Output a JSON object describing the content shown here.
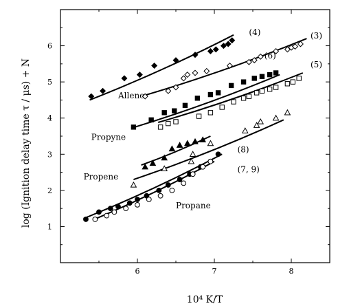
{
  "chart_data": {
    "type": "scatter",
    "xlabel": "10⁴ K/T",
    "ylabel": "log (Ignition delay time  τ / μs) + N",
    "xlim": [
      5,
      8.5
    ],
    "ylim": [
      0,
      7
    ],
    "xticks": [
      "6",
      "7",
      "8"
    ],
    "yticks": [
      "1",
      "2",
      "3",
      "4",
      "5",
      "6"
    ],
    "grid": false,
    "legend": "none",
    "annotations": [
      {
        "text": "(4)",
        "x": 7.45,
        "y": 6.3
      },
      {
        "text": "(3)",
        "x": 8.25,
        "y": 6.2
      },
      {
        "text": "(6)",
        "x": 7.65,
        "y": 5.65
      },
      {
        "text": "(5)",
        "x": 8.25,
        "y": 5.4
      },
      {
        "text": "Allene",
        "x": 5.75,
        "y": 4.55
      },
      {
        "text": "Propyne",
        "x": 5.4,
        "y": 3.4
      },
      {
        "text": "Propene",
        "x": 5.3,
        "y": 2.3
      },
      {
        "text": "(8)",
        "x": 7.3,
        "y": 3.05
      },
      {
        "text": "(7, 9)",
        "x": 7.3,
        "y": 2.5
      },
      {
        "text": "Propane",
        "x": 6.5,
        "y": 1.5
      }
    ],
    "series": [
      {
        "label": "(4)",
        "marker": "diamond-filled",
        "x": [
          5.4,
          5.55,
          5.83,
          6.03,
          6.22,
          6.5,
          6.75,
          6.95,
          7.02,
          7.12,
          7.18,
          7.23
        ],
        "y": [
          4.6,
          4.75,
          5.1,
          5.2,
          5.45,
          5.6,
          5.75,
          5.85,
          5.9,
          6.0,
          6.05,
          6.15
        ],
        "fit": {
          "x": [
            5.38,
            7.25
          ],
          "y": [
            4.5,
            6.3
          ]
        }
      },
      {
        "label": "(3)",
        "marker": "diamond-open",
        "x": [
          6.1,
          6.4,
          6.5,
          6.6,
          6.65,
          6.75,
          6.9,
          7.2,
          7.45,
          7.52,
          7.6,
          7.8,
          7.95,
          8.0,
          8.05,
          8.12
        ],
        "y": [
          4.6,
          4.75,
          4.85,
          5.1,
          5.2,
          5.25,
          5.3,
          5.45,
          5.55,
          5.6,
          5.7,
          5.85,
          5.9,
          5.95,
          5.98,
          6.05
        ],
        "fit": {
          "x": [
            6.08,
            8.2
          ],
          "y": [
            4.62,
            6.2
          ]
        }
      },
      {
        "label": "(6)",
        "marker": "square-filled",
        "x": [
          5.95,
          6.18,
          6.35,
          6.48,
          6.62,
          6.78,
          6.95,
          7.05,
          7.22,
          7.38,
          7.52,
          7.62,
          7.72,
          7.8
        ],
        "y": [
          3.75,
          3.95,
          4.15,
          4.2,
          4.35,
          4.55,
          4.65,
          4.7,
          4.9,
          5.0,
          5.1,
          5.15,
          5.2,
          5.25
        ],
        "fit": {
          "x": [
            5.92,
            7.85
          ],
          "y": [
            3.72,
            5.2
          ]
        }
      },
      {
        "label": "(5)",
        "marker": "square-open",
        "x": [
          6.3,
          6.4,
          6.5,
          6.8,
          6.95,
          7.1,
          7.25,
          7.38,
          7.45,
          7.55,
          7.62,
          7.72,
          7.8,
          7.95,
          8.02,
          8.1
        ],
        "y": [
          3.75,
          3.85,
          3.9,
          4.05,
          4.15,
          4.3,
          4.45,
          4.55,
          4.6,
          4.7,
          4.75,
          4.8,
          4.85,
          4.95,
          5.0,
          5.1
        ],
        "fit": {
          "x": [
            6.27,
            8.15
          ],
          "y": [
            3.88,
            5.25
          ]
        }
      },
      {
        "label": "Propene (filled)",
        "marker": "triangle-filled",
        "x": [
          6.1,
          6.2,
          6.35,
          6.45,
          6.55,
          6.65,
          6.75,
          6.85
        ],
        "y": [
          2.65,
          2.75,
          2.9,
          3.15,
          3.25,
          3.3,
          3.35,
          3.4
        ],
        "fit": {
          "x": [
            6.05,
            6.95
          ],
          "y": [
            2.7,
            3.5
          ]
        }
      },
      {
        "label": "Propene (open)",
        "marker": "triangle-open",
        "x": [
          5.95,
          6.35,
          6.7,
          6.72,
          6.95,
          7.4,
          7.55,
          7.6,
          7.8,
          7.95
        ],
        "y": [
          2.15,
          2.6,
          2.8,
          3.0,
          3.3,
          3.65,
          3.8,
          3.9,
          4.0,
          4.15
        ],
        "fit": {
          "x": [
            5.95,
            7.9
          ],
          "y": [
            2.3,
            3.95
          ]
        }
      },
      {
        "label": "(8)",
        "marker": "circle-filled",
        "x": [
          5.33,
          5.5,
          5.65,
          5.75,
          5.9,
          6.0,
          6.12,
          6.28,
          6.4,
          6.55,
          6.68,
          6.82,
          6.95,
          7.05
        ],
        "y": [
          1.2,
          1.4,
          1.5,
          1.55,
          1.65,
          1.75,
          1.85,
          2.0,
          2.15,
          2.3,
          2.45,
          2.65,
          2.8,
          3.0
        ],
        "fit": {
          "x": [
            5.3,
            7.1
          ],
          "y": [
            1.22,
            3.0
          ]
        }
      },
      {
        "label": "(7, 9)",
        "marker": "circle-open",
        "x": [
          5.45,
          5.6,
          5.7,
          5.85,
          6.0,
          6.15,
          6.3,
          6.45,
          6.6,
          6.72,
          6.85,
          6.95
        ],
        "y": [
          1.2,
          1.3,
          1.4,
          1.5,
          1.6,
          1.75,
          1.85,
          2.0,
          2.2,
          2.45,
          2.65,
          2.8
        ],
        "fit": {
          "x": [
            5.42,
            7.0
          ],
          "y": [
            1.18,
            2.8
          ]
        }
      }
    ]
  }
}
